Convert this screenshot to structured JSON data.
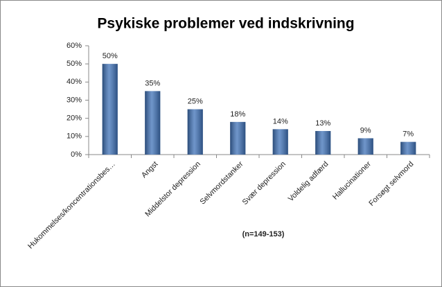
{
  "chart_data": {
    "type": "bar",
    "title": "Psykiske problemer ved indskrivning",
    "annotation": "(n=149-153)",
    "categories": [
      "Hukommelses/koncentrationsbes…",
      "Angst",
      "Middelstor depression",
      "Selvmordstanker",
      "Svær depression",
      "Voldelig adfærd",
      "Hallucinationer",
      "Forsøgt selvmord"
    ],
    "values": [
      50,
      35,
      25,
      18,
      14,
      13,
      9,
      7
    ],
    "value_labels": [
      "50%",
      "35%",
      "25%",
      "18%",
      "14%",
      "13%",
      "9%",
      "7%"
    ],
    "color": "#3f72b8",
    "ylim": [
      0,
      60
    ],
    "yticks": [
      {
        "value": 0,
        "label": "0%"
      },
      {
        "value": 10,
        "label": "10%"
      },
      {
        "value": 20,
        "label": "20%"
      },
      {
        "value": 30,
        "label": "30%"
      },
      {
        "value": 40,
        "label": "40%"
      },
      {
        "value": 50,
        "label": "50%"
      },
      {
        "value": 60,
        "label": "60%"
      }
    ],
    "grid": false
  }
}
